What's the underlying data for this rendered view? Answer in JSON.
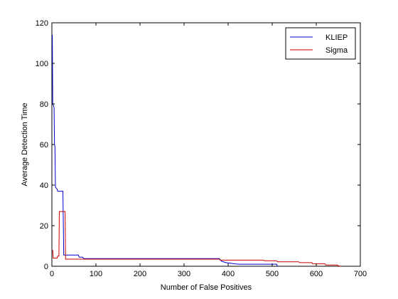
{
  "chart_data": {
    "type": "line",
    "title": "",
    "xlabel": "Number of False Positives",
    "ylabel": "Average Detection Time",
    "xlim": [
      0,
      700
    ],
    "ylim": [
      0,
      120
    ],
    "xticks": [
      0,
      100,
      200,
      300,
      400,
      500,
      600,
      700
    ],
    "yticks": [
      0,
      20,
      40,
      60,
      80,
      100,
      120
    ],
    "grid": false,
    "legend": "top-right",
    "series": [
      {
        "name": "KLIEP",
        "color": "#0000cc",
        "points": [
          [
            1,
            114
          ],
          [
            2,
            80
          ],
          [
            4,
            79
          ],
          [
            5,
            78
          ],
          [
            6,
            60
          ],
          [
            7,
            59
          ],
          [
            8,
            39
          ],
          [
            12,
            38
          ],
          [
            13,
            37
          ],
          [
            25,
            37
          ],
          [
            26,
            21
          ],
          [
            27,
            5.5
          ],
          [
            60,
            5.5
          ],
          [
            62,
            4.5
          ],
          [
            70,
            4.5
          ],
          [
            72,
            3.8
          ],
          [
            380,
            3.8
          ],
          [
            385,
            2.5
          ],
          [
            395,
            1.8
          ],
          [
            405,
            1.5
          ],
          [
            415,
            1.2
          ],
          [
            425,
            1
          ],
          [
            510,
            1
          ],
          [
            512,
            0
          ]
        ]
      },
      {
        "name": "Sigma",
        "color": "#cc0000",
        "points": [
          [
            2,
            8
          ],
          [
            3,
            4
          ],
          [
            12,
            4
          ],
          [
            13,
            5
          ],
          [
            16,
            5
          ],
          [
            17,
            27
          ],
          [
            30,
            27
          ],
          [
            31,
            3.5
          ],
          [
            380,
            3.5
          ],
          [
            382,
            3
          ],
          [
            480,
            3
          ],
          [
            482,
            2.7
          ],
          [
            510,
            2.7
          ],
          [
            512,
            2.2
          ],
          [
            560,
            2.2
          ],
          [
            562,
            1.8
          ],
          [
            590,
            1.8
          ],
          [
            592,
            1.2
          ],
          [
            620,
            1.2
          ],
          [
            622,
            0.6
          ],
          [
            648,
            0.6
          ],
          [
            650,
            0.2
          ],
          [
            655,
            0
          ]
        ]
      }
    ]
  }
}
